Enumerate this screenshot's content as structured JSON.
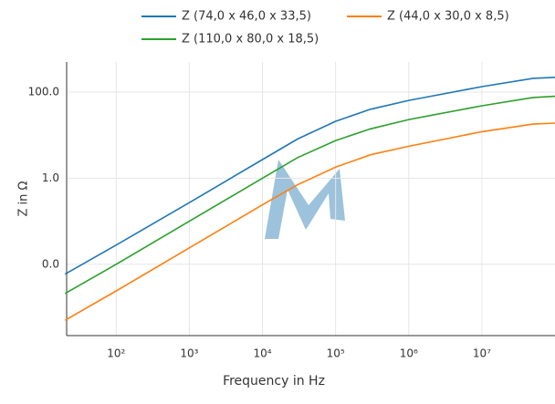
{
  "chart_data": {
    "type": "line",
    "x_label": "Frequency in Hz",
    "y_label": "Z in Ω",
    "x": [
      20,
      100,
      1000,
      10000,
      30000,
      100000,
      300000,
      1000000,
      10000000,
      50000000,
      100000000
    ],
    "series": [
      {
        "name": "Z (74,0 x 46,0 x 33,5)",
        "color": "#1f77b4",
        "values": [
          0.0059,
          0.028,
          0.27,
          2.7,
          8.1,
          21,
          40,
          64,
          134,
          209,
          220
        ]
      },
      {
        "name": "Z (44,0 x 30,0 x 8,5)",
        "color": "#ff7f0e",
        "values": [
          0.0005,
          0.0024,
          0.024,
          0.24,
          0.7,
          1.8,
          3.5,
          5.5,
          12,
          18,
          19
        ]
      },
      {
        "name": "Z (110,0 x 80,0 x 18,5)",
        "color": "#2ca02c",
        "values": [
          0.0021,
          0.01,
          0.1,
          1.0,
          3,
          7.5,
          14,
          23,
          48,
          75,
          80
        ]
      }
    ],
    "xlog": true,
    "ylog": true,
    "grid": true,
    "xlim": [
      21,
      100000000
    ],
    "ylim": [
      0.00022,
      500
    ],
    "xticks": [
      {
        "value": 100,
        "label": "10²"
      },
      {
        "value": 1000,
        "label": "10³"
      },
      {
        "value": 10000,
        "label": "10⁴"
      },
      {
        "value": 100000,
        "label": "10⁵"
      },
      {
        "value": 1000000,
        "label": "10⁶"
      },
      {
        "value": 10000000,
        "label": "10⁷"
      }
    ],
    "yticks": [
      {
        "value": 0.01,
        "label": "0.0"
      },
      {
        "value": 1,
        "label": "1.0"
      },
      {
        "value": 100,
        "label": "100.0"
      }
    ]
  }
}
